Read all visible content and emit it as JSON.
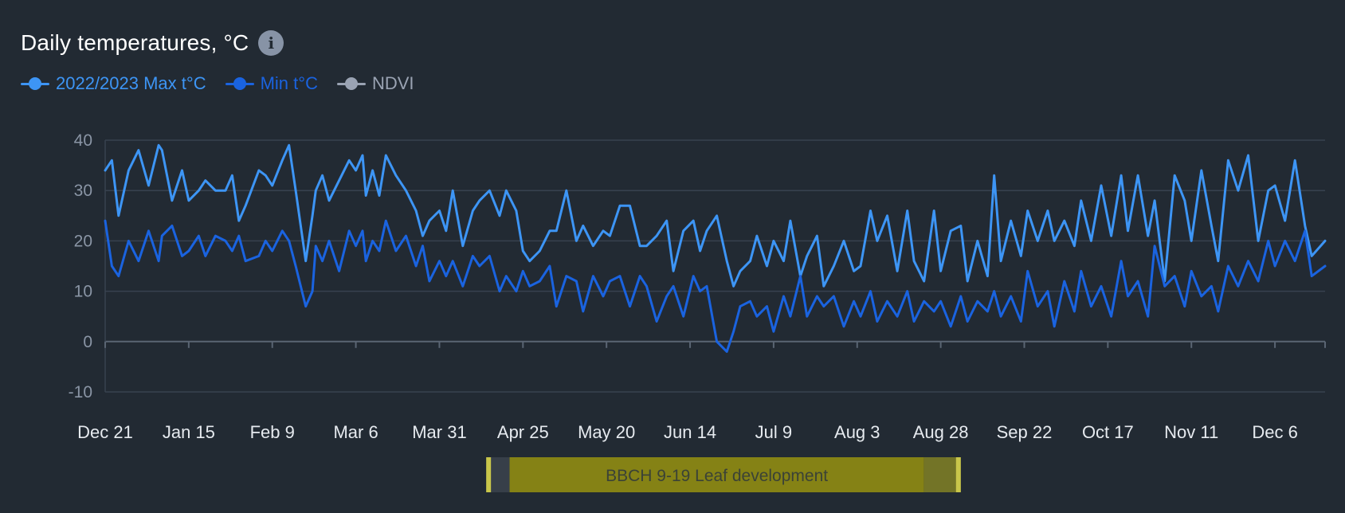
{
  "header": {
    "title": "Daily temperatures, °C",
    "info_icon": "i"
  },
  "legend": [
    {
      "label": "2022/2023 Max t°C",
      "color": "#3d95f5"
    },
    {
      "label": "Min t°C",
      "color": "#1a63e0"
    },
    {
      "label": "NDVI",
      "color": "#9aa3b3"
    }
  ],
  "colors": {
    "max_line": "#3d95f5",
    "min_line": "#1a63e0",
    "grid": "#38424f",
    "axis": "#5a6573",
    "band_dark": "#373f49",
    "band_fill": "#858215",
    "band_fill_right": "#737427",
    "band_edge": "#c9c64a",
    "background": "#222a33"
  },
  "chart_data": {
    "type": "line",
    "x_tick_labels": [
      "Dec 21",
      "Jan 15",
      "Feb 9",
      "Mar 6",
      "Mar 31",
      "Apr 25",
      "May 20",
      "Jun 14",
      "Jul 9",
      "Aug 3",
      "Aug 28",
      "Sep 22",
      "Oct 17",
      "Nov 11",
      "Dec 6"
    ],
    "x_tick_days": [
      0,
      25,
      50,
      75,
      100,
      125,
      150,
      175,
      200,
      225,
      250,
      275,
      300,
      325,
      350
    ],
    "x_range_days": [
      0,
      365
    ],
    "y_ticks": [
      40,
      30,
      20,
      10,
      0,
      -10
    ],
    "ylim": [
      -10,
      40
    ],
    "grid": true,
    "series": [
      {
        "name": "2022/2023 Max t°C",
        "x": [
          0,
          2,
          4,
          7,
          10,
          13,
          16,
          17,
          20,
          23,
          25,
          28,
          30,
          33,
          36,
          38,
          40,
          42,
          46,
          48,
          50,
          53,
          55,
          57,
          60,
          62,
          63,
          65,
          67,
          70,
          73,
          75,
          77,
          78,
          80,
          82,
          84,
          87,
          90,
          93,
          95,
          97,
          100,
          102,
          104,
          107,
          110,
          112,
          115,
          118,
          120,
          123,
          125,
          127,
          130,
          133,
          135,
          138,
          141,
          143,
          146,
          149,
          151,
          154,
          157,
          160,
          162,
          165,
          168,
          170,
          173,
          176,
          178,
          180,
          183,
          186,
          188,
          190,
          193,
          195,
          198,
          200,
          203,
          205,
          208,
          210,
          213,
          215,
          218,
          221,
          224,
          226,
          229,
          231,
          234,
          237,
          240,
          242,
          245,
          248,
          250,
          253,
          256,
          258,
          261,
          264,
          266,
          268,
          271,
          274,
          276,
          279,
          282,
          284,
          287,
          290,
          292,
          295,
          298,
          301,
          304,
          306,
          309,
          312,
          314,
          317,
          320,
          323,
          325,
          328,
          331,
          333,
          336,
          339,
          342,
          345,
          348,
          350,
          353,
          356,
          359,
          361,
          365
        ],
        "y": [
          34,
          36,
          25,
          34,
          38,
          31,
          39,
          38,
          28,
          34,
          28,
          30,
          32,
          30,
          30,
          33,
          24,
          27,
          34,
          33,
          31,
          36,
          39,
          30,
          16,
          25,
          30,
          33,
          28,
          32,
          36,
          34,
          37,
          29,
          34,
          29,
          37,
          33,
          30,
          26,
          21,
          24,
          26,
          22,
          30,
          19,
          26,
          28,
          30,
          25,
          30,
          26,
          18,
          16,
          18,
          22,
          22,
          30,
          20,
          23,
          19,
          22,
          21,
          27,
          27,
          19,
          19,
          21,
          24,
          14,
          22,
          24,
          18,
          22,
          25,
          16,
          11,
          14,
          16,
          21,
          15,
          20,
          16,
          24,
          13,
          17,
          21,
          11,
          15,
          20,
          14,
          15,
          26,
          20,
          25,
          14,
          26,
          16,
          12,
          26,
          14,
          22,
          23,
          12,
          20,
          13,
          33,
          16,
          24,
          17,
          26,
          20,
          26,
          20,
          24,
          19,
          28,
          20,
          31,
          21,
          33,
          22,
          33,
          21,
          28,
          12,
          33,
          28,
          20,
          34,
          23,
          16,
          36,
          30,
          37,
          20,
          30,
          31,
          24,
          36,
          23,
          17,
          20
        ]
      },
      {
        "name": "Min t°C",
        "x": [
          0,
          2,
          4,
          7,
          10,
          13,
          16,
          17,
          20,
          23,
          25,
          28,
          30,
          33,
          36,
          38,
          40,
          42,
          46,
          48,
          50,
          53,
          55,
          57,
          60,
          62,
          63,
          65,
          67,
          70,
          73,
          75,
          77,
          78,
          80,
          82,
          84,
          87,
          90,
          93,
          95,
          97,
          100,
          102,
          104,
          107,
          110,
          112,
          115,
          118,
          120,
          123,
          125,
          127,
          130,
          133,
          135,
          138,
          141,
          143,
          146,
          149,
          151,
          154,
          157,
          160,
          162,
          165,
          168,
          170,
          173,
          176,
          178,
          180,
          183,
          186,
          188,
          190,
          193,
          195,
          198,
          200,
          203,
          205,
          208,
          210,
          213,
          215,
          218,
          221,
          224,
          226,
          229,
          231,
          234,
          237,
          240,
          242,
          245,
          248,
          250,
          253,
          256,
          258,
          261,
          264,
          266,
          268,
          271,
          274,
          276,
          279,
          282,
          284,
          287,
          290,
          292,
          295,
          298,
          301,
          304,
          306,
          309,
          312,
          314,
          317,
          320,
          323,
          325,
          328,
          331,
          333,
          336,
          339,
          342,
          345,
          348,
          350,
          353,
          356,
          359,
          361,
          365
        ],
        "y": [
          24,
          15,
          13,
          20,
          16,
          22,
          16,
          21,
          23,
          17,
          18,
          21,
          17,
          21,
          20,
          18,
          21,
          16,
          17,
          20,
          18,
          22,
          20,
          15,
          7,
          10,
          19,
          16,
          20,
          14,
          22,
          19,
          22,
          16,
          20,
          18,
          24,
          18,
          21,
          15,
          19,
          12,
          16,
          13,
          16,
          11,
          17,
          15,
          17,
          10,
          13,
          10,
          14,
          11,
          12,
          15,
          7,
          13,
          12,
          6,
          13,
          9,
          12,
          13,
          7,
          13,
          11,
          4,
          9,
          11,
          5,
          13,
          10,
          11,
          0,
          -2,
          2,
          7,
          8,
          5,
          7,
          2,
          9,
          5,
          13,
          5,
          9,
          7,
          9,
          3,
          8,
          5,
          10,
          4,
          8,
          5,
          10,
          4,
          8,
          6,
          8,
          3,
          9,
          4,
          8,
          6,
          10,
          5,
          9,
          4,
          14,
          7,
          10,
          3,
          12,
          6,
          14,
          7,
          11,
          5,
          16,
          9,
          12,
          5,
          19,
          11,
          13,
          7,
          14,
          9,
          11,
          6,
          15,
          11,
          16,
          12,
          20,
          15,
          20,
          16,
          22,
          13,
          15
        ]
      }
    ]
  },
  "stage_band": {
    "label": "BBCH 9-19 Leaf development",
    "start_day": 114,
    "fill_start_day": 121,
    "fill_end_day": 245,
    "end_day": 256
  }
}
